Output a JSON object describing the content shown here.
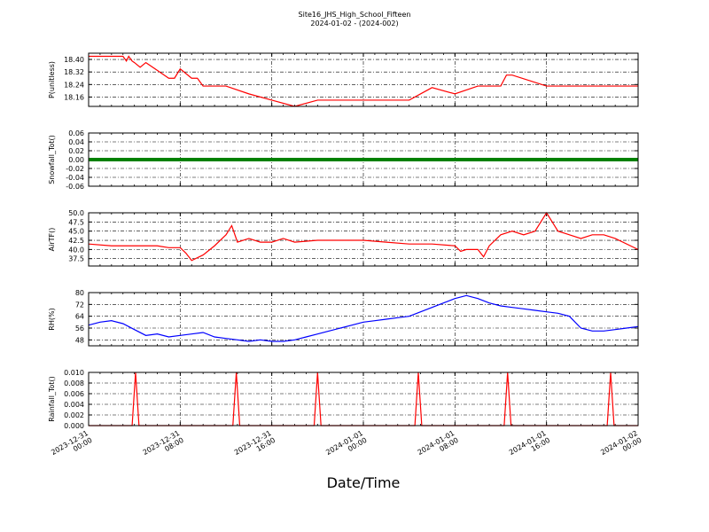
{
  "title": "Site16_JHS_High_School_Fifteen",
  "subtitle": "2024-01-02 - (2024-002)",
  "xlabel": "Date/Time",
  "x_ticks": [
    "2023-12-31\n00:00",
    "2023-12-31\n08:00",
    "2023-12-31\n16:00",
    "2024-01-01\n00:00",
    "2024-01-01\n08:00",
    "2024-01-01\n16:00",
    "2024-01-02\n00:00"
  ],
  "chart_data": [
    {
      "type": "line",
      "ylabel": "P(unitless)",
      "color": "#ff0000",
      "ylim": [
        18.1,
        18.44
      ],
      "yticks": [
        "18.16",
        "18.24",
        "18.32",
        "18.40"
      ],
      "grid": true,
      "x_hours": [
        0,
        3,
        3.3,
        3.5,
        3.8,
        4,
        4.5,
        5,
        6,
        7,
        7.5,
        8,
        9,
        9.5,
        10,
        12,
        14,
        16,
        18,
        20,
        22,
        24,
        26,
        28,
        30,
        32,
        34,
        36,
        36.5,
        37,
        40,
        41,
        42,
        44,
        46,
        48
      ],
      "values": [
        18.42,
        18.42,
        18.39,
        18.42,
        18.39,
        18.38,
        18.35,
        18.38,
        18.33,
        18.28,
        18.28,
        18.34,
        18.28,
        18.28,
        18.23,
        18.23,
        18.18,
        18.14,
        18.1,
        18.14,
        18.14,
        18.14,
        18.14,
        18.14,
        18.22,
        18.18,
        18.23,
        18.23,
        18.3,
        18.3,
        18.23,
        18.23,
        18.23,
        18.23,
        18.23,
        18.23
      ]
    },
    {
      "type": "line",
      "ylabel": "Snowfall_Tot()",
      "color": "#008000",
      "ylim": [
        -0.06,
        0.06
      ],
      "yticks": [
        "-0.06",
        "-0.04",
        "-0.02",
        "0.00",
        "0.02",
        "0.04",
        "0.06"
      ],
      "grid": true,
      "x_hours": [
        0,
        48
      ],
      "values": [
        0,
        0
      ]
    },
    {
      "type": "line",
      "ylabel": "AirTF()",
      "color": "#ff0000",
      "ylim": [
        35.5,
        50.0
      ],
      "yticks": [
        "37.5",
        "40.0",
        "42.5",
        "45.0",
        "47.5",
        "50.0"
      ],
      "grid": true,
      "x_hours": [
        0,
        2,
        4,
        6,
        7,
        8,
        8.5,
        9,
        10,
        11,
        12,
        12.5,
        13,
        14,
        15,
        16,
        17,
        18,
        20,
        22,
        24,
        26,
        28,
        30,
        32,
        32.5,
        33,
        34,
        34.5,
        35,
        36,
        37,
        38,
        39,
        40,
        41,
        42,
        43,
        44,
        45,
        46,
        48
      ],
      "values": [
        41.5,
        41,
        41,
        41,
        40.5,
        40.5,
        39,
        37,
        38.5,
        41,
        44,
        46.5,
        42,
        43,
        42,
        42,
        43,
        42,
        42.5,
        42.5,
        42.5,
        42,
        41.5,
        41.5,
        41,
        39.5,
        40,
        40,
        38,
        41,
        44,
        45,
        44,
        45,
        50,
        45,
        44,
        43,
        44,
        44,
        43,
        40
      ]
    },
    {
      "type": "line",
      "ylabel": "RH(%)",
      "color": "#0000ff",
      "ylim": [
        44.0,
        80.0
      ],
      "yticks": [
        "48",
        "56",
        "64",
        "72",
        "80"
      ],
      "grid": true,
      "x_hours": [
        0,
        1,
        2,
        3,
        4,
        5,
        6,
        7,
        8,
        9,
        10,
        11,
        12,
        13,
        14,
        15,
        16,
        17,
        18,
        19,
        20,
        21,
        22,
        23,
        24,
        25,
        26,
        27,
        28,
        29,
        30,
        31,
        32,
        33,
        34,
        35,
        36,
        37,
        38,
        39,
        40,
        41,
        42,
        43,
        44,
        45,
        46,
        47,
        48
      ],
      "values": [
        58,
        60,
        61,
        59,
        55,
        51,
        52,
        50,
        51,
        52,
        53,
        50,
        49,
        48,
        47,
        48,
        47,
        47,
        48,
        50,
        52,
        54,
        56,
        58,
        60,
        61,
        62,
        63,
        64,
        67,
        70,
        73,
        76,
        78,
        76,
        73,
        71,
        70,
        69,
        68,
        67,
        66,
        64,
        56,
        54,
        54,
        55,
        56,
        57
      ]
    },
    {
      "type": "line",
      "ylabel": "Rainfall_Tot()",
      "color": "#ff0000",
      "ylim": [
        0.0,
        0.01
      ],
      "yticks": [
        "0.000",
        "0.002",
        "0.004",
        "0.006",
        "0.008",
        "0.010"
      ],
      "grid": true,
      "x_hours": [
        0,
        3.8,
        4.1,
        4.4,
        12.6,
        12.9,
        13.2,
        19.7,
        20,
        20.3,
        28.5,
        28.8,
        29.1,
        36.3,
        36.6,
        36.9,
        45.3,
        45.6,
        45.9,
        48
      ],
      "values": [
        0,
        0,
        0.01,
        0,
        0,
        0.01,
        0,
        0,
        0.01,
        0,
        0,
        0.01,
        0,
        0,
        0.01,
        0,
        0,
        0.01,
        0,
        0
      ]
    }
  ]
}
